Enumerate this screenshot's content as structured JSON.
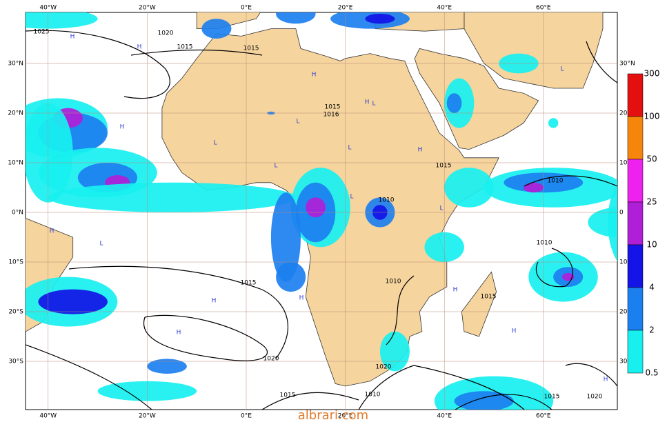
{
  "map": {
    "lon_labels": [
      "40°W",
      "20°W",
      "0°E",
      "20°E",
      "40°E",
      "60°E"
    ],
    "lat_labels_left": [
      "30°N",
      "20°N",
      "10°N",
      "0°N",
      "10°S",
      "20°S",
      "30°S"
    ],
    "lat_labels_right": [
      "30°N",
      "20",
      "10",
      "0",
      "10",
      "20",
      "30"
    ],
    "legend": {
      "labels": [
        "300",
        "100",
        "50",
        "25",
        "10",
        "4",
        "2",
        "0.5"
      ],
      "colors": [
        "#e3100f",
        "#f6860b",
        "#ee22ee",
        "#b01fd8",
        "#1414e6",
        "#1c7fef",
        "#18f0f0"
      ]
    },
    "isobar_labels": [
      "1025",
      "1020",
      "1015",
      "1015",
      "1015",
      "1016",
      "1015",
      "1010",
      "1010",
      "1010",
      "1010",
      "1015",
      "1015",
      "1020",
      "1020",
      "1015",
      "1010",
      "1015",
      "1020"
    ],
    "pressure_centers": [
      "H",
      "H",
      "H",
      "H",
      "H",
      "L",
      "L",
      "L",
      "L",
      "H",
      "L",
      "L",
      "H",
      "H",
      "H",
      "H",
      "L",
      "H",
      "L",
      "L",
      "H",
      "H"
    ],
    "watermark": "albrari.com"
  }
}
